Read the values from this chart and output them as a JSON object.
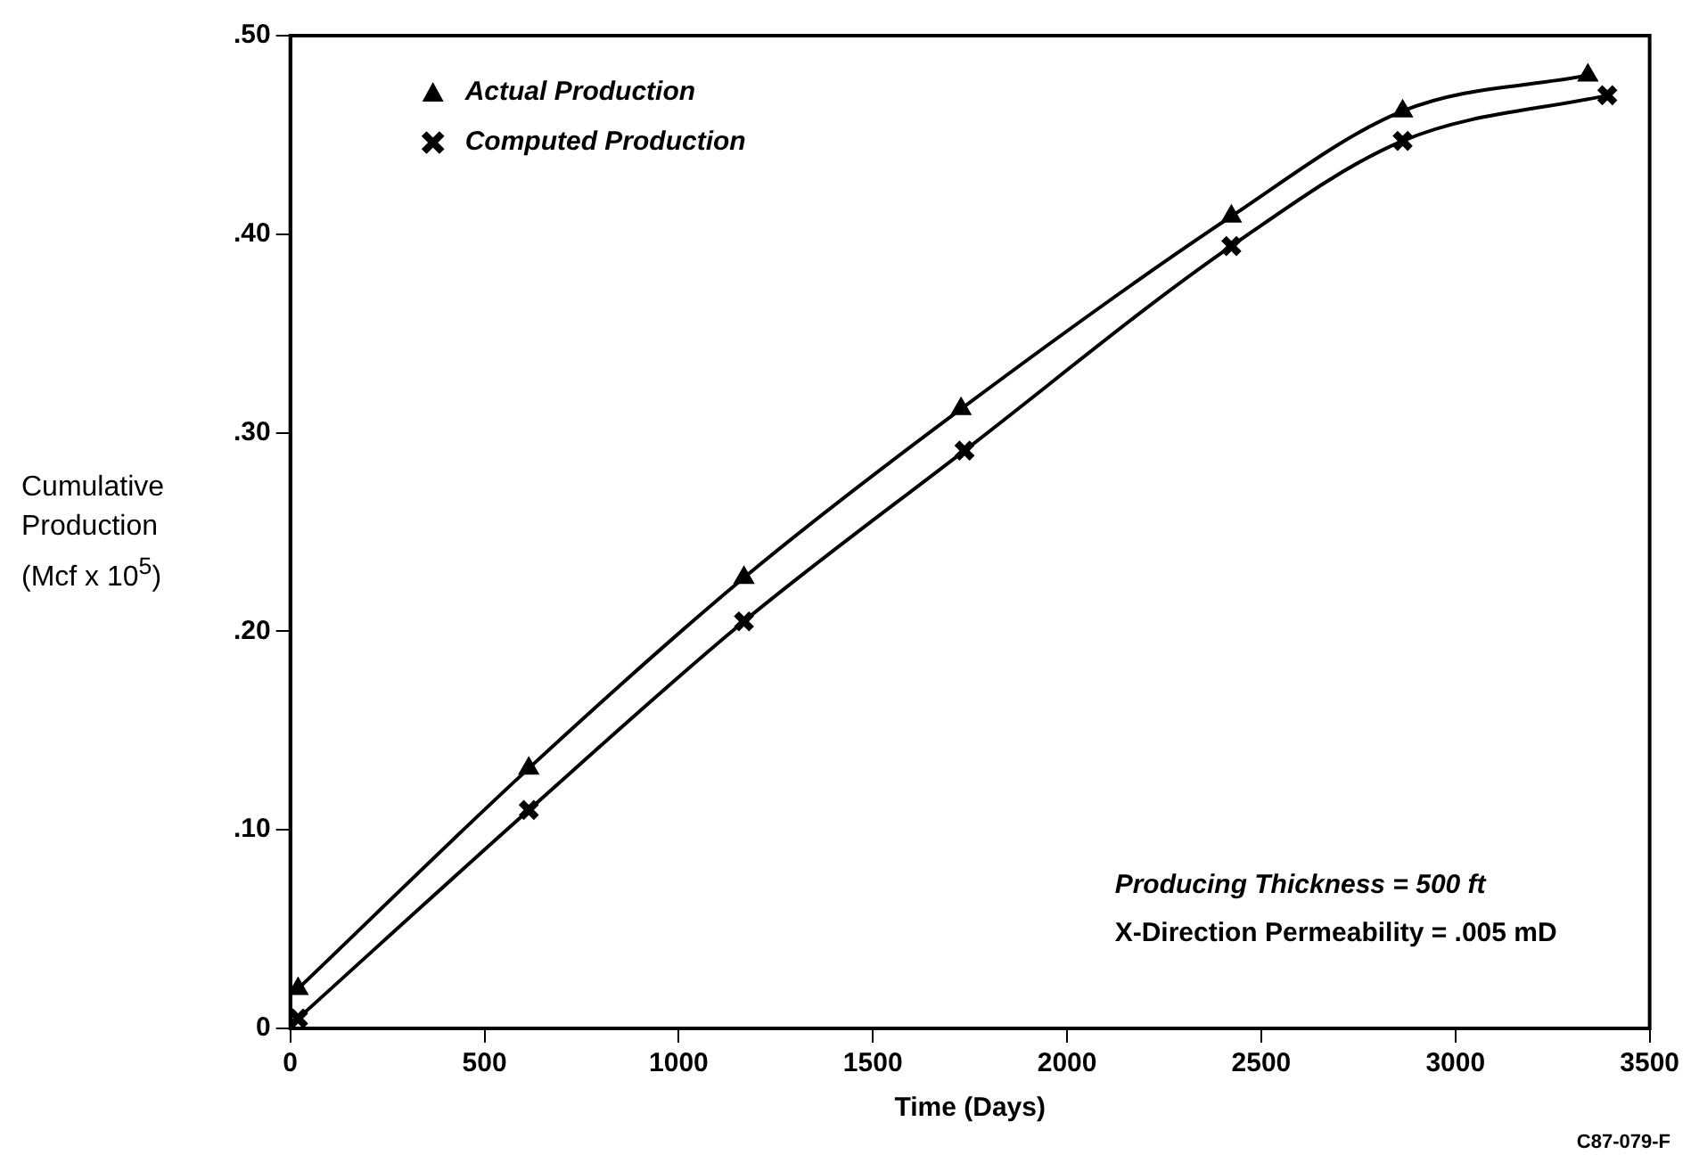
{
  "chart_data": {
    "type": "line",
    "xlabel": "Time (Days)",
    "ylabel": "Cumulative Production (Mcf x 10$^{5}$)",
    "annotations": [
      "Producing Thickness = 500 ft",
      "X-Direction Permeability = .005 mD",
      "C87-079-F"
    ],
    "series": [
      {
        "name": "Actual Production",
        "color": "#000000",
        "marker": "triangle",
        "x": [
          20,
          614,
          1168,
          1727,
          2423,
          2864,
          3341
        ],
        "values": [
          0.02,
          0.131,
          0.227,
          0.312,
          0.409,
          0.462,
          0.48
        ]
      },
      {
        "name": "Computed Production",
        "color": "#000000",
        "marker": "cross",
        "x": [
          20,
          614,
          1168,
          1736,
          2423,
          2864,
          3391
        ],
        "values": [
          0.005,
          0.11,
          0.205,
          0.291,
          0.394,
          0.447,
          0.47
        ]
      }
    ],
    "xlim": [
      0,
      3500
    ],
    "xticks": [
      0,
      500,
      1000,
      1500,
      2000,
      2500,
      3000,
      3500
    ],
    "ylim": [
      0,
      0.5
    ],
    "yticks": [
      0,
      {
        "value": 0.1,
        "label": ".10"
      },
      {
        "value": 0.2,
        "label": ".20"
      },
      {
        "value": 0.3,
        "label": ".30"
      },
      {
        "value": 0.4,
        "label": ".40"
      },
      {
        "value": 0.5,
        "label": ".50"
      }
    ],
    "grid": false,
    "legend": "top left"
  }
}
